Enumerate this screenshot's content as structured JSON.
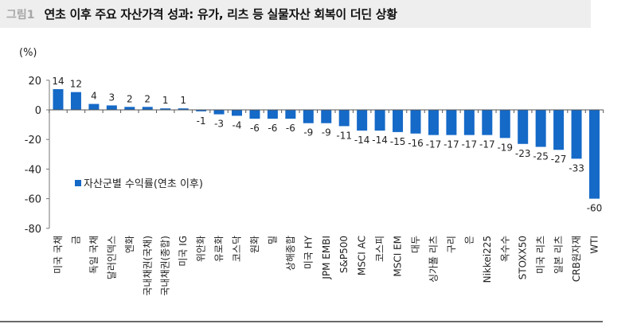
{
  "header": {
    "figure_label": "그림1",
    "title": "연초 이후 주요 자산가격 성과: 유가, 리츠 등 실물자산 회복이 더딘 상황"
  },
  "chart_data": {
    "type": "bar",
    "title": "연초 이후 주요 자산가격 성과: 유가, 리츠 등 실물자산 회복이 더딘 상황",
    "ylabel": "(%)",
    "xlabel": "",
    "ylim": [
      -80,
      20
    ],
    "yticks": [
      20,
      0,
      -20,
      -40,
      -60,
      -80
    ],
    "grid": false,
    "legend_position": "inside-left-middle",
    "bar_color": "#1569c7",
    "categories": [
      "미국 국채",
      "금",
      "독일 국채",
      "달러인덱스",
      "엔화",
      "국내채권(국채)",
      "국내채권(종합)",
      "미국 IG",
      "위안화",
      "유로화",
      "코스닥",
      "원화",
      "밀",
      "상해종합",
      "미국 HY",
      "JPM EMBI",
      "S&P500",
      "MSCI AC",
      "코스피",
      "MSCI EM",
      "대두",
      "싱가폴 리츠",
      "구리",
      "은",
      "Nikkei225",
      "옥수수",
      "STOXX50",
      "미국 리츠",
      "일본 리츠",
      "CRB원자재",
      "WTI"
    ],
    "series": [
      {
        "name": "자산군별 수익률(연초 이후)",
        "values": [
          14,
          12,
          4,
          3,
          2,
          2,
          1,
          1,
          -1,
          -3,
          -4,
          -6,
          -6,
          -6,
          -9,
          -9,
          -11,
          -14,
          -14,
          -15,
          -16,
          -17,
          -17,
          -17,
          -17,
          -19,
          -23,
          -25,
          -27,
          -33,
          -60
        ]
      }
    ]
  }
}
